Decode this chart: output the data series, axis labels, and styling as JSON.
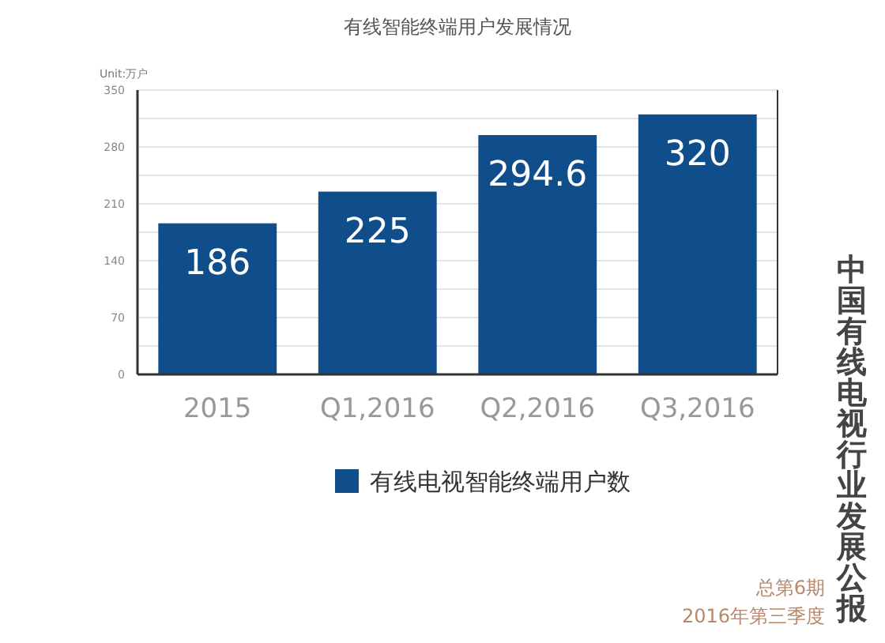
{
  "chart_data": {
    "type": "bar",
    "title": "有线智能终端用户发展情况",
    "ylabel": "Unit:万户",
    "categories": [
      "2015",
      "Q1,2016",
      "Q2,2016",
      "Q3,2016"
    ],
    "series": [
      {
        "name": "有线电视智能终端用户数",
        "color": "#104e8b",
        "values": [
          186,
          225,
          294.6,
          320
        ]
      }
    ],
    "ylim": [
      0,
      350
    ],
    "yticks": [
      0,
      {
        "value": 35,
        "label": null
      },
      70,
      {
        "value": 105,
        "label": null
      },
      140,
      {
        "value": 175,
        "label": null
      },
      210,
      {
        "value": 245,
        "label": null
      },
      280,
      {
        "value": 315,
        "label": null
      },
      350
    ],
    "grid": "y",
    "data_labels": true,
    "legend": "bottom",
    "annotations": [
      "中国有线电视行业发展公报",
      "总第6期",
      "2016年第三季度"
    ]
  }
}
